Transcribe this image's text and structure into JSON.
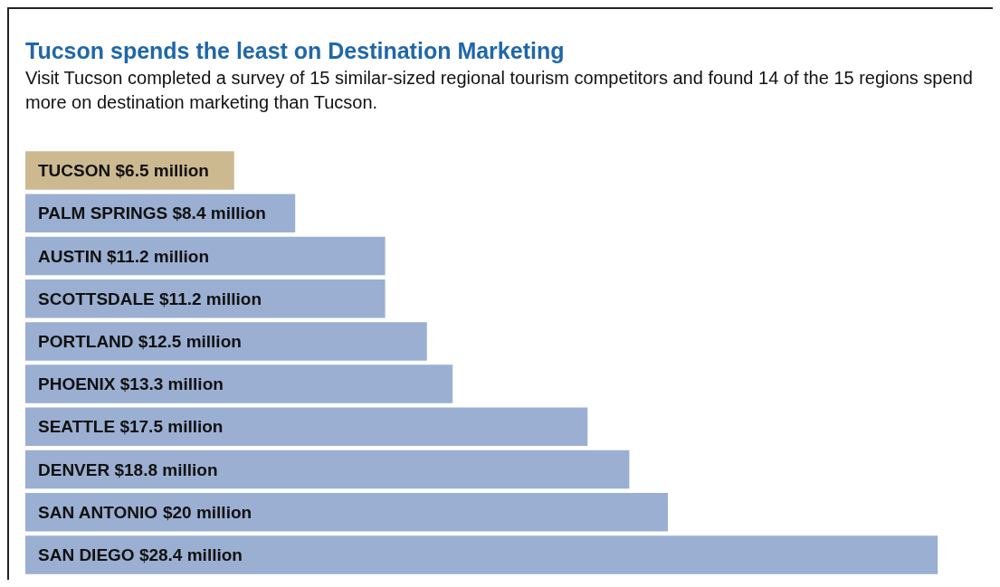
{
  "chart_data": {
    "type": "bar",
    "orientation": "horizontal",
    "title": "Tucson spends the least on Destination Marketing",
    "subtitle": "Visit Tucson completed a survey of 15 similar-sized regional tourism competitors and found 14 of the 15 regions spend more on destination marketing than Tucson.",
    "categories": [
      "TUCSON",
      "PALM SPRINGS",
      "AUSTIN",
      "SCOTTSDALE",
      "PORTLAND",
      "PHOENIX",
      "SEATTLE",
      "DENVER",
      "SAN ANTONIO",
      "SAN DIEGO"
    ],
    "values": [
      6.5,
      8.4,
      11.2,
      11.2,
      12.5,
      13.3,
      17.5,
      18.8,
      20,
      28.4
    ],
    "value_labels": [
      "$6.5 million",
      "$8.4 million",
      "$11.2 million",
      "$11.2 million",
      "$12.5 million",
      "$13.3 million",
      "$17.5 million",
      "$18.8 million",
      "$20 million",
      "$28.4 million"
    ],
    "colors": [
      "#cdb990",
      "#9aafd1",
      "#9aafd1",
      "#9aafd1",
      "#9aafd1",
      "#9aafd1",
      "#9aafd1",
      "#9aafd1",
      "#9aafd1",
      "#9aafd1"
    ]
  }
}
